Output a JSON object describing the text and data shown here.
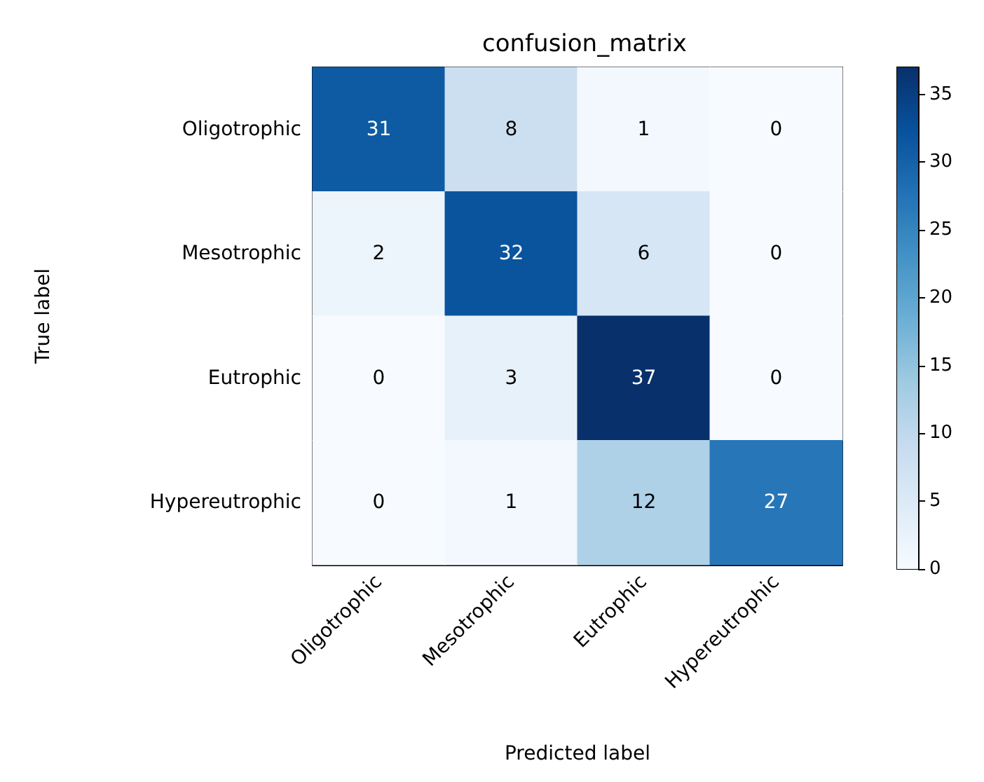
{
  "chart_data": {
    "type": "heatmap",
    "title": "confusion_matrix",
    "xlabel": "Predicted label",
    "ylabel": "True label",
    "categories": [
      "Oligotrophic",
      "Mesotrophic",
      "Eutrophic",
      "Hypereutrophic"
    ],
    "y_categories": [
      "Oligotrophic",
      "Mesotrophic",
      "Eutrophic",
      "Hypereutrophic"
    ],
    "cells": [
      [
        31,
        8,
        1,
        0
      ],
      [
        2,
        32,
        6,
        0
      ],
      [
        0,
        3,
        37,
        0
      ],
      [
        0,
        1,
        12,
        27
      ]
    ],
    "clim": [
      0,
      37
    ],
    "cticks": [
      0,
      5,
      10,
      15,
      20,
      25,
      30,
      35
    ],
    "data_labels": true
  }
}
